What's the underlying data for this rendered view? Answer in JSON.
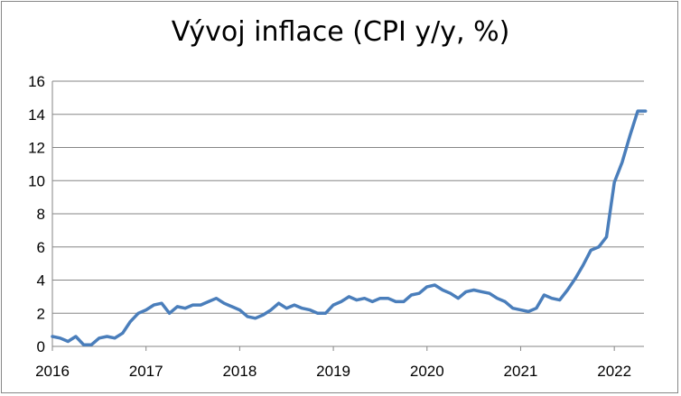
{
  "chart_data": {
    "type": "line",
    "title": "Vývoj inflace (CPI y/y, %)",
    "xlabel": "",
    "ylabel": "",
    "ylim": [
      0,
      16
    ],
    "yticks": [
      "0",
      "2",
      "4",
      "6",
      "8",
      "10",
      "12",
      "14",
      "16"
    ],
    "xticks": [
      "2016",
      "2017",
      "2018",
      "2019",
      "2020",
      "2021",
      "2022"
    ],
    "grid": true,
    "legend": "none",
    "line_color": "#4a7ebb",
    "series": [
      {
        "x": [
          "2016-01",
          "2016-02",
          "2016-03",
          "2016-04",
          "2016-05",
          "2016-06",
          "2016-07",
          "2016-08",
          "2016-09",
          "2016-10",
          "2016-11",
          "2016-12",
          "2017-01",
          "2017-02",
          "2017-03",
          "2017-04",
          "2017-05",
          "2017-06",
          "2017-07",
          "2017-08",
          "2017-09",
          "2017-10",
          "2017-11",
          "2017-12",
          "2018-01",
          "2018-02",
          "2018-03",
          "2018-04",
          "2018-05",
          "2018-06",
          "2018-07",
          "2018-08",
          "2018-09",
          "2018-10",
          "2018-11",
          "2018-12",
          "2019-01",
          "2019-02",
          "2019-03",
          "2019-04",
          "2019-05",
          "2019-06",
          "2019-07",
          "2019-08",
          "2019-09",
          "2019-10",
          "2019-11",
          "2019-12",
          "2020-01",
          "2020-02",
          "2020-03",
          "2020-04",
          "2020-05",
          "2020-06",
          "2020-07",
          "2020-08",
          "2020-09",
          "2020-10",
          "2020-11",
          "2020-12",
          "2021-01",
          "2021-02",
          "2021-03",
          "2021-04",
          "2021-05",
          "2021-06",
          "2021-07",
          "2021-08",
          "2021-09",
          "2021-10",
          "2021-11",
          "2021-12",
          "2022-01",
          "2022-02",
          "2022-03",
          "2022-04",
          "2022-05"
        ],
        "values": [
          0.6,
          0.5,
          0.3,
          0.6,
          0.1,
          0.1,
          0.5,
          0.6,
          0.5,
          0.8,
          1.5,
          2.0,
          2.2,
          2.5,
          2.6,
          2.0,
          2.4,
          2.3,
          2.5,
          2.5,
          2.7,
          2.9,
          2.6,
          2.4,
          2.2,
          1.8,
          1.7,
          1.9,
          2.2,
          2.6,
          2.3,
          2.5,
          2.3,
          2.2,
          2.0,
          2.0,
          2.5,
          2.7,
          3.0,
          2.8,
          2.9,
          2.7,
          2.9,
          2.9,
          2.7,
          2.7,
          3.1,
          3.2,
          3.6,
          3.7,
          3.4,
          3.2,
          2.9,
          3.3,
          3.4,
          3.3,
          3.2,
          2.9,
          2.7,
          2.3,
          2.2,
          2.1,
          2.3,
          3.1,
          2.9,
          2.8,
          3.4,
          4.1,
          4.9,
          5.8,
          6.0,
          6.6,
          9.9,
          11.1,
          12.7,
          14.2,
          14.2
        ]
      }
    ]
  }
}
